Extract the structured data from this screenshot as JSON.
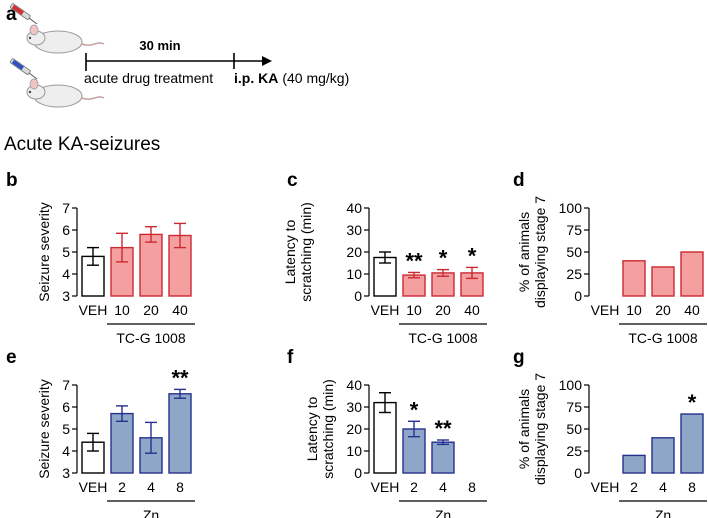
{
  "panel_a": {
    "letter": "a",
    "duration_label": "30 min",
    "pretreatment_label": "acute drug treatment",
    "injection_bold": "i.p. KA",
    "injection_dose": "(40 mg/kg)"
  },
  "section_title": "Acute KA-seizures",
  "colors": {
    "red_fill": "#f4a0a0",
    "red_stroke": "#cc2a33",
    "blue_fill": "#8ea7c8",
    "blue_stroke": "#25318f",
    "veh_fill": "#ffffff",
    "veh_stroke": "#000000"
  },
  "chart_data": [
    {
      "id": "b",
      "letter": "b",
      "type": "bar",
      "theme": "red",
      "ylabel_lines": [
        "Seizure severity"
      ],
      "ylim": [
        3,
        7
      ],
      "yticks": [
        "3",
        "4",
        "5",
        "6",
        "7"
      ],
      "categories": [
        "VEH",
        "10",
        "20",
        "40"
      ],
      "values": [
        4.8,
        5.2,
        5.8,
        5.75
      ],
      "errors": [
        0.4,
        0.65,
        0.35,
        0.55
      ],
      "significance": [
        "",
        "",
        "",
        ""
      ],
      "group_label": "TC-G 1008"
    },
    {
      "id": "c",
      "letter": "c",
      "type": "bar",
      "theme": "red",
      "ylabel_lines": [
        "Latency to",
        "scratching (min)"
      ],
      "ylim": [
        0,
        40
      ],
      "yticks": [
        "0",
        "10",
        "20",
        "30",
        "40"
      ],
      "categories": [
        "VEH",
        "10",
        "20",
        "40"
      ],
      "values": [
        17.5,
        9.5,
        10.5,
        10.5
      ],
      "errors": [
        2.5,
        1.2,
        1.5,
        2.5
      ],
      "significance": [
        "",
        "**",
        "*",
        "*"
      ],
      "group_label": "TC-G 1008"
    },
    {
      "id": "d",
      "letter": "d",
      "type": "bar",
      "theme": "red",
      "ylabel_lines": [
        "% of animals",
        "displaying stage 7"
      ],
      "ylim": [
        0,
        100
      ],
      "yticks": [
        "0",
        "25",
        "50",
        "75",
        "100"
      ],
      "categories": [
        "VEH",
        "10",
        "20",
        "40"
      ],
      "values": [
        0,
        40,
        33,
        50
      ],
      "errors": [
        0,
        0,
        0,
        0
      ],
      "significance": [
        "",
        "",
        "",
        ""
      ],
      "group_label": "TC-G 1008"
    },
    {
      "id": "e",
      "letter": "e",
      "type": "bar",
      "theme": "blue",
      "ylabel_lines": [
        "Seizure severity"
      ],
      "ylim": [
        3,
        7
      ],
      "yticks": [
        "3",
        "4",
        "5",
        "6",
        "7"
      ],
      "categories": [
        "VEH",
        "2",
        "4",
        "8"
      ],
      "values": [
        4.4,
        5.7,
        4.6,
        6.6
      ],
      "errors": [
        0.4,
        0.35,
        0.7,
        0.2
      ],
      "significance": [
        "",
        "",
        "",
        "**"
      ],
      "group_label": "Zn"
    },
    {
      "id": "f",
      "letter": "f",
      "type": "bar",
      "theme": "blue",
      "ylabel_lines": [
        "Latency to",
        "scratching (min)"
      ],
      "ylim": [
        0,
        40
      ],
      "yticks": [
        "0",
        "10",
        "20",
        "30",
        "40"
      ],
      "categories": [
        "VEH",
        "2",
        "4",
        "8"
      ],
      "values": [
        32,
        20,
        14,
        0
      ],
      "errors": [
        4.5,
        3.5,
        1,
        0
      ],
      "significance": [
        "",
        "*",
        "**",
        ""
      ],
      "group_label": "Zn"
    },
    {
      "id": "g",
      "letter": "g",
      "type": "bar",
      "theme": "blue",
      "ylabel_lines": [
        "% of animals",
        "displaying stage 7"
      ],
      "ylim": [
        0,
        100
      ],
      "yticks": [
        "0",
        "25",
        "50",
        "75",
        "100"
      ],
      "categories": [
        "VEH",
        "2",
        "4",
        "8"
      ],
      "values": [
        0,
        20,
        40,
        67
      ],
      "errors": [
        0,
        0,
        0,
        0
      ],
      "significance": [
        "",
        "",
        "",
        "*"
      ],
      "group_label": "Zn"
    }
  ]
}
